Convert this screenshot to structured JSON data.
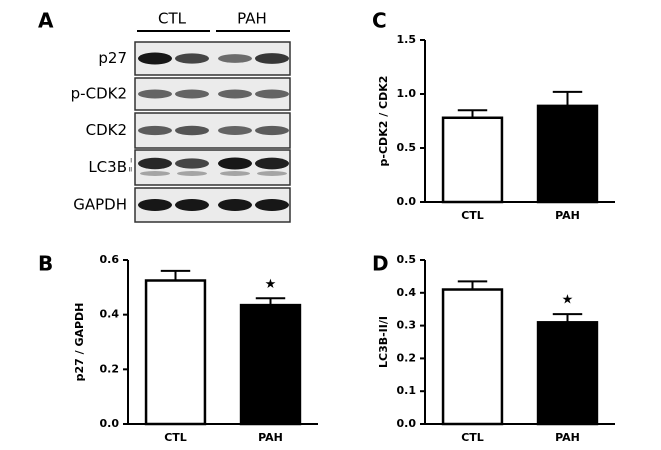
{
  "blot": {
    "label": "A",
    "groups": [
      "CTL",
      "PAH"
    ],
    "rows": [
      "p27",
      "p-CDK2",
      "CDK2",
      "LC3B",
      "GAPDH"
    ],
    "lc3b_forms": [
      "I",
      "II"
    ]
  },
  "chart_data": [
    {
      "type": "bar",
      "panel": "B",
      "ylabel": "p27 / GAPDH",
      "categories": [
        "CTL",
        "PAH"
      ],
      "values": [
        0.525,
        0.435
      ],
      "errors": [
        0.035,
        0.025
      ],
      "colors": [
        "#ffffff",
        "#000000"
      ],
      "ylim": [
        0,
        0.6
      ],
      "yticks": [
        {
          "value": 0,
          "label": "0.0"
        },
        0.2,
        0.4,
        0.6
      ],
      "annotation": "★"
    },
    {
      "type": "bar",
      "panel": "C",
      "ylabel": "p-CDK2 / CDK2",
      "categories": [
        "CTL",
        "PAH"
      ],
      "values": [
        0.78,
        0.89
      ],
      "errors": [
        0.07,
        0.13
      ],
      "colors": [
        "#ffffff",
        "#000000"
      ],
      "ylim": [
        0,
        1.5
      ],
      "yticks": [
        {
          "value": 0,
          "label": "0.0"
        },
        0.5,
        {
          "value": 1,
          "label": "1.0"
        },
        1.5
      ]
    },
    {
      "type": "bar",
      "panel": "D",
      "ylabel": "LC3B-II/I",
      "categories": [
        "CTL",
        "PAH"
      ],
      "values": [
        0.41,
        0.31
      ],
      "errors": [
        0.025,
        0.025
      ],
      "colors": [
        "#ffffff",
        "#000000"
      ],
      "ylim": [
        0,
        0.5
      ],
      "yticks": [
        {
          "value": 0,
          "label": "0.0"
        },
        0.1,
        0.2,
        0.3,
        0.4,
        0.5
      ],
      "annotation": "★"
    }
  ]
}
